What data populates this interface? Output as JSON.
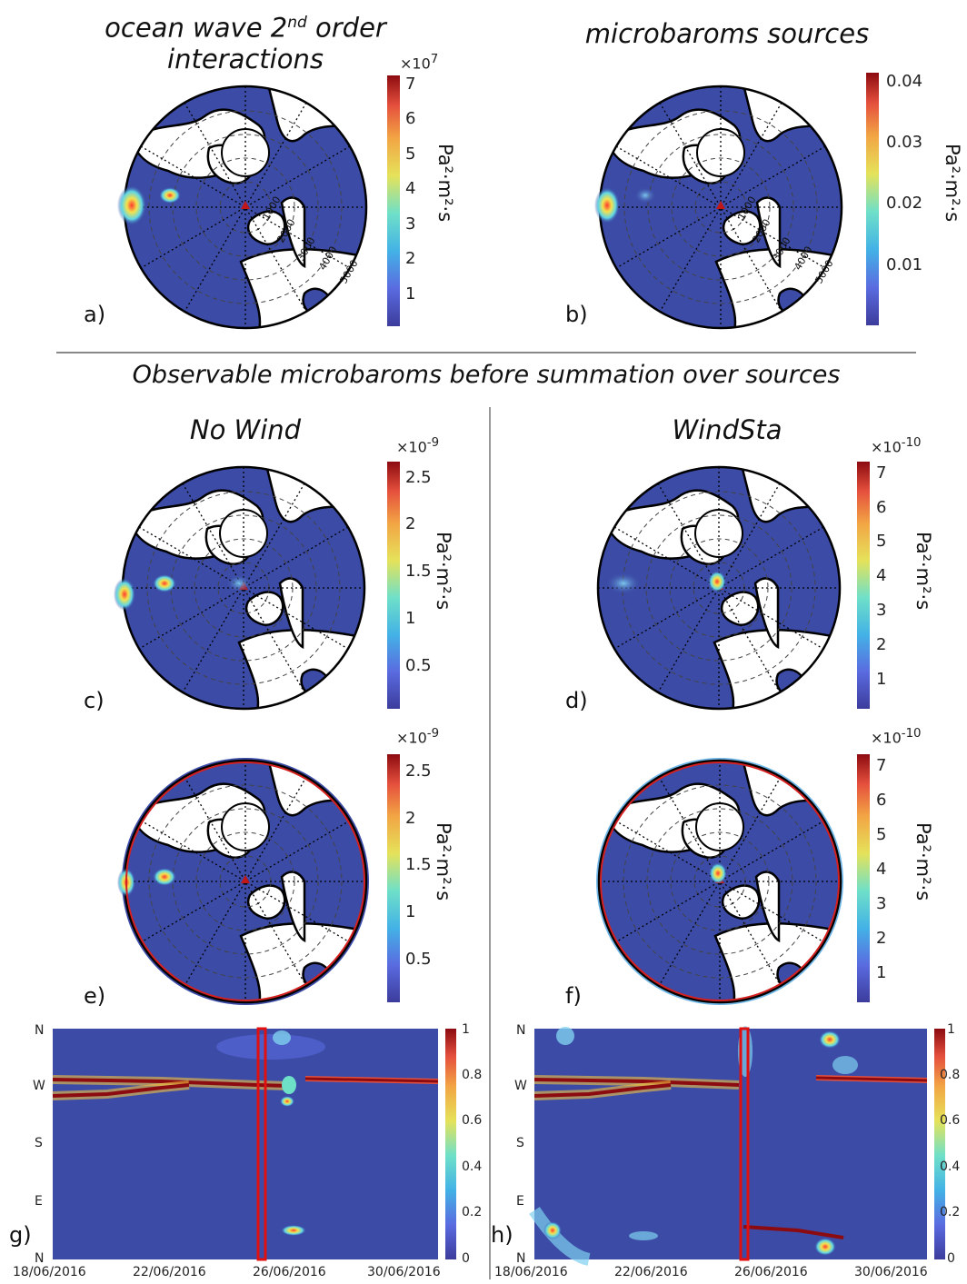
{
  "titles": {
    "a": "ocean wave 2nd order interactions",
    "a_line1": "ocean wave 2",
    "a_sup": "nd",
    "a_line1_rest": " order",
    "a_line2": "interactions",
    "b": "microbaroms sources",
    "section": "Observable microbaroms before summation over sources",
    "left_col": "No Wind",
    "right_col": "WindSta"
  },
  "panel_labels": [
    "a)",
    "b)",
    "c)",
    "d)",
    "e)",
    "f)",
    "g)",
    "h)"
  ],
  "units": {
    "pa2m2s": "Pa²·m²·s"
  },
  "range_labels": [
    "1000",
    "2000",
    "3000",
    "4000",
    "5000"
  ],
  "colorbars": {
    "a": {
      "multiplier": "×10",
      "exponent": "7",
      "ticks": [
        "1",
        "2",
        "3",
        "4",
        "5",
        "6",
        "7"
      ]
    },
    "b": {
      "multiplier": "",
      "exponent": "",
      "ticks": [
        "0.01",
        "0.02",
        "0.03",
        "0.04"
      ]
    },
    "c": {
      "multiplier": "×10",
      "exponent": "-9",
      "ticks": [
        "0.5",
        "1",
        "1.5",
        "2",
        "2.5"
      ]
    },
    "d": {
      "multiplier": "×10",
      "exponent": "-10",
      "ticks": [
        "1",
        "2",
        "3",
        "4",
        "5",
        "6",
        "7"
      ]
    },
    "e": {
      "multiplier": "×10",
      "exponent": "-9",
      "ticks": [
        "0.5",
        "1",
        "1.5",
        "2",
        "2.5"
      ]
    },
    "f": {
      "multiplier": "×10",
      "exponent": "-10",
      "ticks": [
        "1",
        "2",
        "3",
        "4",
        "5",
        "6",
        "7"
      ]
    },
    "g": {
      "ticks": [
        "0",
        "0.2",
        "0.4",
        "0.6",
        "0.8",
        "1"
      ]
    },
    "h": {
      "ticks": [
        "0",
        "0.2",
        "0.4",
        "0.6",
        "0.8",
        "1"
      ]
    }
  },
  "chart_data": [
    {
      "type": "heatmap",
      "panel": "g",
      "yticks": [
        "N",
        "W",
        "S",
        "E",
        "N"
      ],
      "xticks": [
        "18/06/2016",
        "22/06/2016",
        "26/06/2016",
        "30/06/2016"
      ],
      "clim": [
        0,
        1
      ]
    },
    {
      "type": "heatmap",
      "panel": "h",
      "yticks": [
        "N",
        "W",
        "S",
        "E",
        "N"
      ],
      "xticks": [
        "18/06/2016",
        "22/06/2016",
        "26/06/2016",
        "30/06/2016"
      ],
      "clim": [
        0,
        1
      ]
    }
  ],
  "colors": {
    "ocean": "#3b4ba6",
    "land": "#ffffff",
    "highlight": "#d42020"
  }
}
